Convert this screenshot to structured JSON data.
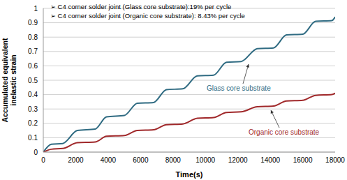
{
  "chart_data": {
    "type": "line",
    "x_label": "Time(s)",
    "y_label": "Accumulated equivalent inelastic strain",
    "annotations": [
      "➢ C4 corner solder joint (Glass core substrate):19% per cycle",
      "➢ C4 corner solder joint (Organic core substrate): 8.43% per cycle"
    ],
    "x": [
      0,
      500,
      1200,
      2100,
      3200,
      3900,
      5000,
      5800,
      6800,
      7600,
      8600,
      9500,
      10500,
      11300,
      12200,
      13200,
      14200,
      15000,
      16000,
      16800,
      17800,
      18000
    ],
    "series": [
      {
        "name": "Glass core substrate",
        "color": "#2f6b82",
        "values": [
          0,
          0.055,
          0.06,
          0.15,
          0.16,
          0.245,
          0.255,
          0.34,
          0.345,
          0.435,
          0.44,
          0.53,
          0.535,
          0.625,
          0.63,
          0.72,
          0.725,
          0.815,
          0.82,
          0.91,
          0.915,
          0.94
        ]
      },
      {
        "name": "Organic core substrate",
        "color": "#a0282a",
        "values": [
          0,
          0.02,
          0.025,
          0.065,
          0.07,
          0.11,
          0.115,
          0.15,
          0.155,
          0.19,
          0.195,
          0.235,
          0.24,
          0.275,
          0.28,
          0.315,
          0.32,
          0.355,
          0.36,
          0.395,
          0.4,
          0.41
        ]
      }
    ],
    "xlim": [
      0,
      18000
    ],
    "xticks": [
      0,
      2000,
      4000,
      6000,
      8000,
      10000,
      12000,
      14000,
      16000,
      18000
    ],
    "ylim": [
      0,
      1
    ],
    "yticks": [
      0,
      0.1,
      0.2,
      0.3,
      0.4,
      0.5,
      0.6,
      0.7,
      0.8,
      0.9,
      1
    ],
    "grid": true
  }
}
